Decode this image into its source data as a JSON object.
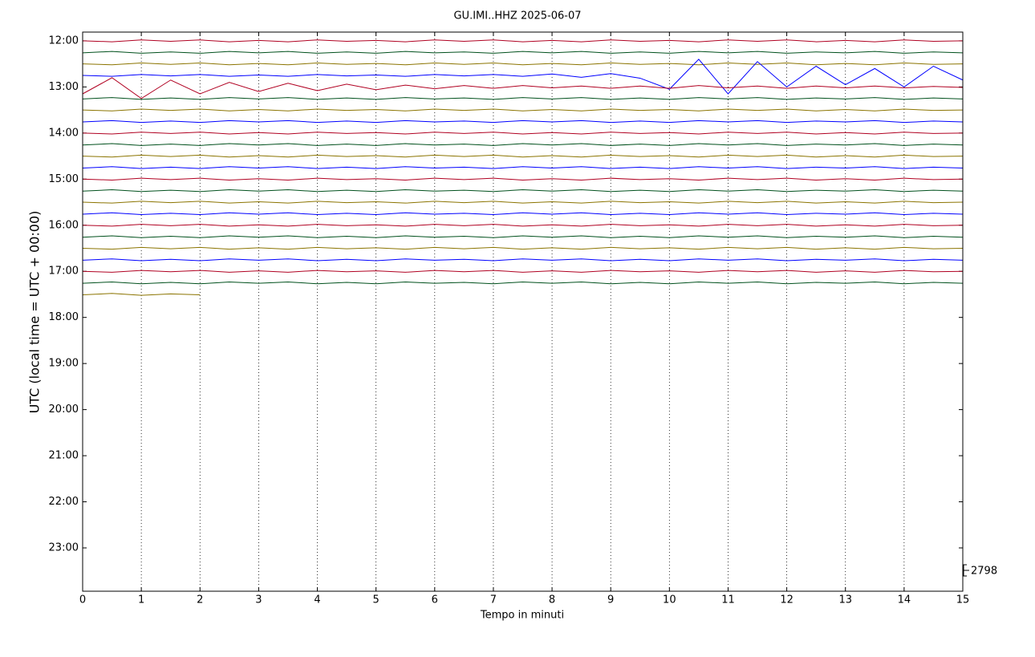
{
  "chart_data": {
    "type": "helicorder",
    "title": "GU.IMI..HHZ 2025-06-07",
    "xlabel": "Tempo in minuti",
    "ylabel": "UTC (local time = UTC + 00:00)",
    "xlim": [
      0,
      15
    ],
    "xticks": [
      0,
      1,
      2,
      3,
      4,
      5,
      6,
      7,
      8,
      9,
      10,
      11,
      12,
      13,
      14,
      15
    ],
    "ylim": [
      11.81,
      23.94
    ],
    "y_inverted": true,
    "yticks": [
      {
        "value": 12,
        "label": "12:00"
      },
      {
        "value": 13,
        "label": "13:00"
      },
      {
        "value": 14,
        "label": "14:00"
      },
      {
        "value": 15,
        "label": "15:00"
      },
      {
        "value": 16,
        "label": "16:00"
      },
      {
        "value": 17,
        "label": "17:00"
      },
      {
        "value": 18,
        "label": "18:00"
      },
      {
        "value": 19,
        "label": "19:00"
      },
      {
        "value": 20,
        "label": "20:00"
      },
      {
        "value": 21,
        "label": "21:00"
      },
      {
        "value": 22,
        "label": "22:00"
      },
      {
        "value": 23,
        "label": "23:00"
      }
    ],
    "grid": true,
    "scale_label": 2798,
    "x": [
      0,
      0.5,
      1,
      1.5,
      2,
      2.5,
      3,
      3.5,
      4,
      4.5,
      5,
      5.5,
      6,
      6.5,
      7,
      7.5,
      8,
      8.5,
      9,
      9.5,
      10,
      10.5,
      11,
      11.5,
      12,
      12.5,
      13,
      13.5,
      14,
      14.5,
      15
    ],
    "series": [
      {
        "color": "#b00021",
        "offset": 12,
        "values": [
          0,
          0.02,
          -0.02,
          0.01,
          -0.02,
          0.02,
          -0.01,
          0.02,
          -0.02,
          0.01,
          -0.01,
          0.02,
          -0.02,
          0.01,
          -0.02,
          0.02,
          -0.01,
          0.02,
          -0.02,
          0.01,
          -0.01,
          0.02,
          -0.02,
          0.01,
          -0.02,
          0.02,
          -0.01,
          0.02,
          -0.02,
          0.01,
          0
        ]
      },
      {
        "color": "#00501c",
        "offset": 12.25,
        "values": [
          0.01,
          -0.02,
          0.02,
          -0.01,
          0.02,
          -0.02,
          0.01,
          -0.02,
          0.02,
          -0.01,
          0.02,
          -0.02,
          0.01,
          -0.01,
          0.02,
          -0.02,
          0.01,
          -0.02,
          0.02,
          -0.01,
          0.02,
          -0.02,
          0.01,
          -0.02,
          0.02,
          -0.01,
          0.01,
          -0.02,
          0.02,
          -0.01,
          0.01
        ]
      },
      {
        "color": "#8b7400",
        "offset": 12.5,
        "values": [
          0,
          0.02,
          -0.02,
          0.01,
          -0.02,
          0.02,
          -0.01,
          0.02,
          -0.02,
          0.01,
          -0.01,
          0.02,
          -0.02,
          0.01,
          -0.02,
          0.02,
          -0.01,
          0.02,
          -0.02,
          0.01,
          -0.01,
          0.02,
          -0.02,
          0.01,
          -0.02,
          0.02,
          -0.01,
          0.02,
          -0.02,
          0.01,
          0
        ]
      },
      {
        "color": "#0000ff",
        "offset": 12.75,
        "values": [
          0,
          0.02,
          -0.02,
          0.01,
          -0.02,
          0.02,
          -0.01,
          0.02,
          -0.02,
          0.01,
          -0.01,
          0.02,
          -0.02,
          0.01,
          -0.02,
          0.02,
          -0.03,
          0.04,
          -0.04,
          0.06,
          0.3,
          -0.35,
          0.4,
          -0.3,
          0.25,
          -0.2,
          0.2,
          -0.15,
          0.25,
          -0.2,
          0.1
        ]
      },
      {
        "color": "#b00021",
        "offset": 13,
        "values": [
          0.15,
          -0.2,
          0.25,
          -0.15,
          0.15,
          -0.1,
          0.1,
          -0.08,
          0.08,
          -0.06,
          0.06,
          -0.04,
          0.04,
          -0.03,
          0.03,
          -0.03,
          0.02,
          -0.02,
          0.03,
          -0.02,
          0.03,
          -0.03,
          0.02,
          -0.02,
          0.03,
          -0.02,
          0.02,
          -0.02,
          0.02,
          -0.01,
          0.01
        ]
      },
      {
        "color": "#00501c",
        "offset": 13.25,
        "values": [
          0.01,
          -0.02,
          0.02,
          -0.01,
          0.02,
          -0.02,
          0.01,
          -0.02,
          0.02,
          -0.01,
          0.02,
          -0.02,
          0.01,
          -0.01,
          0.02,
          -0.02,
          0.01,
          -0.02,
          0.02,
          -0.01,
          0.02,
          -0.02,
          0.01,
          -0.02,
          0.02,
          -0.01,
          0.01,
          -0.02,
          0.02,
          -0.01,
          0.01
        ]
      },
      {
        "color": "#8b7400",
        "offset": 13.5,
        "values": [
          0,
          0.02,
          -0.02,
          0.01,
          -0.02,
          0.02,
          -0.01,
          0.02,
          -0.02,
          0.01,
          -0.01,
          0.02,
          -0.02,
          0.01,
          -0.02,
          0.02,
          -0.01,
          0.02,
          -0.02,
          0.01,
          -0.01,
          0.02,
          -0.02,
          0.01,
          -0.02,
          0.02,
          -0.01,
          0.02,
          -0.02,
          0.01,
          0
        ]
      },
      {
        "color": "#0000ff",
        "offset": 13.75,
        "values": [
          0.01,
          -0.02,
          0.02,
          -0.01,
          0.02,
          -0.02,
          0.01,
          -0.02,
          0.02,
          -0.01,
          0.02,
          -0.02,
          0.01,
          -0.01,
          0.02,
          -0.02,
          0.01,
          -0.02,
          0.02,
          -0.01,
          0.02,
          -0.02,
          0.01,
          -0.02,
          0.02,
          -0.01,
          0.01,
          -0.02,
          0.02,
          -0.01,
          0.01
        ]
      },
      {
        "color": "#b00021",
        "offset": 14,
        "values": [
          0,
          0.02,
          -0.02,
          0.01,
          -0.02,
          0.02,
          -0.01,
          0.02,
          -0.02,
          0.01,
          -0.01,
          0.02,
          -0.02,
          0.01,
          -0.02,
          0.02,
          -0.01,
          0.02,
          -0.02,
          0.01,
          -0.01,
          0.02,
          -0.02,
          0.01,
          -0.02,
          0.02,
          -0.01,
          0.02,
          -0.02,
          0.01,
          0
        ]
      },
      {
        "color": "#00501c",
        "offset": 14.25,
        "values": [
          0.01,
          -0.02,
          0.02,
          -0.01,
          0.02,
          -0.02,
          0.01,
          -0.02,
          0.02,
          -0.01,
          0.02,
          -0.02,
          0.01,
          -0.01,
          0.02,
          -0.02,
          0.01,
          -0.02,
          0.02,
          -0.01,
          0.02,
          -0.02,
          0.01,
          -0.02,
          0.02,
          -0.01,
          0.01,
          -0.02,
          0.02,
          -0.01,
          0.01
        ]
      },
      {
        "color": "#8b7400",
        "offset": 14.5,
        "values": [
          0,
          0.02,
          -0.02,
          0.01,
          -0.02,
          0.02,
          -0.01,
          0.02,
          -0.02,
          0.01,
          -0.01,
          0.02,
          -0.02,
          0.01,
          -0.02,
          0.02,
          -0.01,
          0.02,
          -0.02,
          0.01,
          -0.01,
          0.02,
          -0.02,
          0.01,
          -0.02,
          0.02,
          -0.01,
          0.02,
          -0.02,
          0.01,
          0
        ]
      },
      {
        "color": "#0000ff",
        "offset": 14.75,
        "values": [
          0.01,
          -0.02,
          0.02,
          -0.01,
          0.02,
          -0.02,
          0.01,
          -0.02,
          0.02,
          -0.01,
          0.02,
          -0.02,
          0.01,
          -0.01,
          0.02,
          -0.02,
          0.01,
          -0.02,
          0.02,
          -0.01,
          0.02,
          -0.02,
          0.01,
          -0.02,
          0.02,
          -0.01,
          0.01,
          -0.02,
          0.02,
          -0.01,
          0.01
        ]
      },
      {
        "color": "#b00021",
        "offset": 15,
        "values": [
          0,
          0.02,
          -0.02,
          0.01,
          -0.02,
          0.02,
          -0.01,
          0.02,
          -0.02,
          0.01,
          -0.01,
          0.02,
          -0.02,
          0.01,
          -0.02,
          0.02,
          -0.01,
          0.02,
          -0.02,
          0.01,
          -0.01,
          0.02,
          -0.02,
          0.01,
          -0.02,
          0.02,
          -0.01,
          0.02,
          -0.02,
          0.01,
          0
        ]
      },
      {
        "color": "#00501c",
        "offset": 15.25,
        "values": [
          0.01,
          -0.02,
          0.02,
          -0.01,
          0.02,
          -0.02,
          0.01,
          -0.02,
          0.02,
          -0.01,
          0.02,
          -0.02,
          0.01,
          -0.01,
          0.02,
          -0.02,
          0.01,
          -0.02,
          0.02,
          -0.01,
          0.02,
          -0.02,
          0.01,
          -0.02,
          0.02,
          -0.01,
          0.01,
          -0.02,
          0.02,
          -0.01,
          0.01
        ]
      },
      {
        "color": "#8b7400",
        "offset": 15.5,
        "values": [
          0,
          0.02,
          -0.02,
          0.01,
          -0.02,
          0.02,
          -0.01,
          0.02,
          -0.02,
          0.01,
          -0.01,
          0.02,
          -0.02,
          0.01,
          -0.02,
          0.02,
          -0.01,
          0.02,
          -0.02,
          0.01,
          -0.01,
          0.02,
          -0.02,
          0.01,
          -0.02,
          0.02,
          -0.01,
          0.02,
          -0.02,
          0.01,
          0
        ]
      },
      {
        "color": "#0000ff",
        "offset": 15.75,
        "values": [
          0.01,
          -0.02,
          0.02,
          -0.01,
          0.02,
          -0.02,
          0.01,
          -0.02,
          0.02,
          -0.01,
          0.02,
          -0.02,
          0.01,
          -0.01,
          0.02,
          -0.02,
          0.01,
          -0.02,
          0.02,
          -0.01,
          0.02,
          -0.02,
          0.01,
          -0.02,
          0.02,
          -0.01,
          0.01,
          -0.02,
          0.02,
          -0.01,
          0.01
        ]
      },
      {
        "color": "#b00021",
        "offset": 16,
        "values": [
          0,
          0.02,
          -0.02,
          0.01,
          -0.02,
          0.02,
          -0.01,
          0.02,
          -0.02,
          0.01,
          -0.01,
          0.02,
          -0.02,
          0.01,
          -0.02,
          0.02,
          -0.01,
          0.02,
          -0.02,
          0.01,
          -0.01,
          0.02,
          -0.02,
          0.01,
          -0.02,
          0.02,
          -0.01,
          0.02,
          -0.02,
          0.01,
          0
        ]
      },
      {
        "color": "#00501c",
        "offset": 16.25,
        "values": [
          0.01,
          -0.02,
          0.02,
          -0.01,
          0.02,
          -0.02,
          0.01,
          -0.02,
          0.02,
          -0.01,
          0.02,
          -0.02,
          0.01,
          -0.01,
          0.02,
          -0.02,
          0.01,
          -0.02,
          0.02,
          -0.01,
          0.02,
          -0.02,
          0.01,
          -0.02,
          0.02,
          -0.01,
          0.01,
          -0.02,
          0.02,
          -0.01,
          0.01
        ]
      },
      {
        "color": "#8b7400",
        "offset": 16.5,
        "values": [
          0,
          0.02,
          -0.02,
          0.01,
          -0.02,
          0.02,
          -0.01,
          0.02,
          -0.02,
          0.01,
          -0.01,
          0.02,
          -0.02,
          0.01,
          -0.02,
          0.02,
          -0.01,
          0.02,
          -0.02,
          0.01,
          -0.01,
          0.02,
          -0.02,
          0.01,
          -0.02,
          0.02,
          -0.01,
          0.02,
          -0.02,
          0.01,
          0
        ]
      },
      {
        "color": "#0000ff",
        "offset": 16.75,
        "values": [
          0.01,
          -0.02,
          0.02,
          -0.01,
          0.02,
          -0.02,
          0.01,
          -0.02,
          0.02,
          -0.01,
          0.02,
          -0.02,
          0.01,
          -0.01,
          0.02,
          -0.02,
          0.01,
          -0.02,
          0.02,
          -0.01,
          0.02,
          -0.02,
          0.01,
          -0.02,
          0.02,
          -0.01,
          0.01,
          -0.02,
          0.02,
          -0.01,
          0.01
        ]
      },
      {
        "color": "#b00021",
        "offset": 17,
        "values": [
          0,
          0.02,
          -0.02,
          0.01,
          -0.02,
          0.02,
          -0.01,
          0.02,
          -0.02,
          0.01,
          -0.01,
          0.02,
          -0.02,
          0.01,
          -0.02,
          0.02,
          -0.01,
          0.02,
          -0.02,
          0.01,
          -0.01,
          0.02,
          -0.02,
          0.01,
          -0.02,
          0.02,
          -0.01,
          0.02,
          -0.02,
          0.01,
          0
        ]
      },
      {
        "color": "#00501c",
        "offset": 17.25,
        "values": [
          0.01,
          -0.02,
          0.02,
          -0.01,
          0.02,
          -0.02,
          0.01,
          -0.02,
          0.02,
          -0.01,
          0.02,
          -0.02,
          0.01,
          -0.01,
          0.02,
          -0.02,
          0.01,
          -0.02,
          0.02,
          -0.01,
          0.02,
          -0.02,
          0.01,
          -0.02,
          0.02,
          -0.01,
          0.01,
          -0.02,
          0.02,
          -0.01,
          0.01
        ]
      },
      {
        "color": "#8b7400",
        "offset": 17.5,
        "values": [
          0.01,
          -0.02,
          0.02,
          -0.01,
          0.01,
          null,
          null,
          null,
          null,
          null,
          null,
          null,
          null,
          null,
          null,
          null,
          null,
          null,
          null,
          null,
          null,
          null,
          null,
          null,
          null,
          null,
          null,
          null,
          null,
          null,
          null
        ]
      }
    ]
  }
}
